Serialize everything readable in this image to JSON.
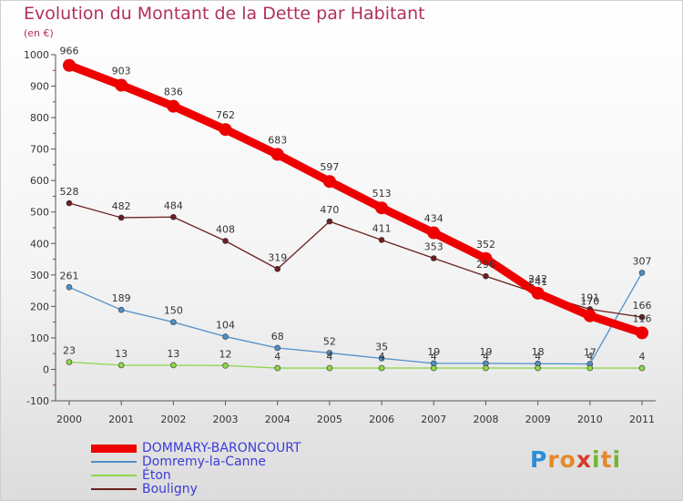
{
  "title": "Evolution du Montant de la Dette par Habitant",
  "unit_label": "(en €)",
  "logo": {
    "letters": [
      "P",
      "r",
      "o",
      "x",
      "i",
      "t",
      "i"
    ],
    "colors": [
      "#2a8fd6",
      "#e48a2a",
      "#e48a2a",
      "#d63b2a",
      "#74b62e",
      "#e48a2a",
      "#74b62e"
    ]
  },
  "chart_data": {
    "type": "line",
    "x": [
      "2000",
      "2001",
      "2002",
      "2003",
      "2004",
      "2005",
      "2006",
      "2007",
      "2008",
      "2009",
      "2010",
      "2011"
    ],
    "ylim": [
      -100,
      1000
    ],
    "yticks": [
      "-100",
      "0",
      "100",
      "200",
      "300",
      "400",
      "500",
      "600",
      "700",
      "800",
      "900",
      "1000"
    ],
    "grid": false,
    "legend_position": "bottom",
    "series": [
      {
        "name": "DOMMARY-BARONCOURT",
        "color": "#ee0000",
        "values": [
          966,
          903,
          836,
          762,
          683,
          597,
          513,
          434,
          352,
          242,
          170,
          116
        ],
        "labels": [
          "966",
          "903",
          "836",
          "762",
          "683",
          "597",
          "513",
          "434",
          "352",
          "242",
          "170",
          "116"
        ]
      },
      {
        "name": "Domremy-la-Canne",
        "color": "#4d8fc9",
        "values": [
          261,
          189,
          150,
          104,
          68,
          52,
          35,
          19,
          19,
          18,
          17,
          307
        ],
        "labels": [
          "261",
          "189",
          "150",
          "104",
          "68",
          "52",
          "35",
          "19",
          "19",
          "18",
          "17",
          "307"
        ]
      },
      {
        "name": "Éton",
        "color": "#8fd64b",
        "values": [
          23,
          13,
          13,
          12,
          4,
          4,
          4,
          4,
          4,
          4,
          4,
          4
        ],
        "labels": [
          "23",
          "13",
          "13",
          "12",
          "4",
          "4",
          "4",
          "4",
          "4",
          "4",
          "4",
          "4"
        ]
      },
      {
        "name": "Bouligny",
        "color": "#6b1f1f",
        "values": [
          528,
          482,
          484,
          408,
          319,
          470,
          411,
          353,
          296,
          241,
          191,
          166
        ],
        "labels": [
          "528",
          "482",
          "484",
          "408",
          "319",
          "470",
          "411",
          "353",
          "296",
          "241",
          "191",
          "166"
        ]
      }
    ]
  }
}
